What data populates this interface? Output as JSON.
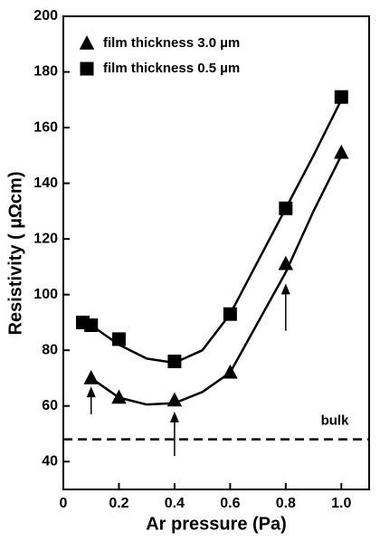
{
  "chart_data": {
    "type": "scatter",
    "xlabel": "Ar pressure (Pa)",
    "ylabel": "Resistivity ( µΩcm)",
    "xlim": [
      0,
      1.1
    ],
    "ylim": [
      30,
      200
    ],
    "xticks": [
      0,
      0.2,
      0.4,
      0.6,
      0.8,
      {
        "value": 1,
        "label": "1.0"
      }
    ],
    "yticks": [
      40,
      60,
      80,
      100,
      120,
      140,
      160,
      180,
      200
    ],
    "legend": "top-left",
    "series": [
      {
        "name": "film thickness 3.0 µm",
        "marker": "triangle",
        "color": "#000000",
        "x": [
          0.1,
          0.2,
          0.4,
          0.6,
          0.8,
          1.0
        ],
        "values": [
          70,
          63,
          62,
          72,
          111,
          151
        ],
        "fit": {
          "x": [
            0.1,
            0.2,
            0.3,
            0.4,
            0.5,
            0.6,
            0.7,
            0.8,
            0.9,
            1.0
          ],
          "values": [
            70,
            63,
            60.5,
            61,
            65,
            72,
            90,
            108,
            130,
            150
          ]
        }
      },
      {
        "name": "film thickness 0.5 µm",
        "marker": "square",
        "color": "#000000",
        "x": [
          0.07,
          0.1,
          0.2,
          0.4,
          0.6,
          0.8,
          1.0
        ],
        "values": [
          90,
          89,
          84,
          76,
          93,
          131,
          171
        ],
        "fit": {
          "x": [
            0.1,
            0.2,
            0.3,
            0.4,
            0.5,
            0.6,
            0.7,
            0.8,
            0.9,
            1.0
          ],
          "values": [
            89,
            82,
            77,
            75.5,
            80,
            93,
            112,
            131,
            150,
            170
          ]
        }
      }
    ],
    "reference_line": {
      "value": 48,
      "label": "bulk"
    },
    "arrows": [
      {
        "x": 0.1,
        "from": 57,
        "to": 67
      },
      {
        "x": 0.4,
        "from": 42,
        "to": 58
      },
      {
        "x": 0.8,
        "from": 87,
        "to": 104
      }
    ]
  }
}
